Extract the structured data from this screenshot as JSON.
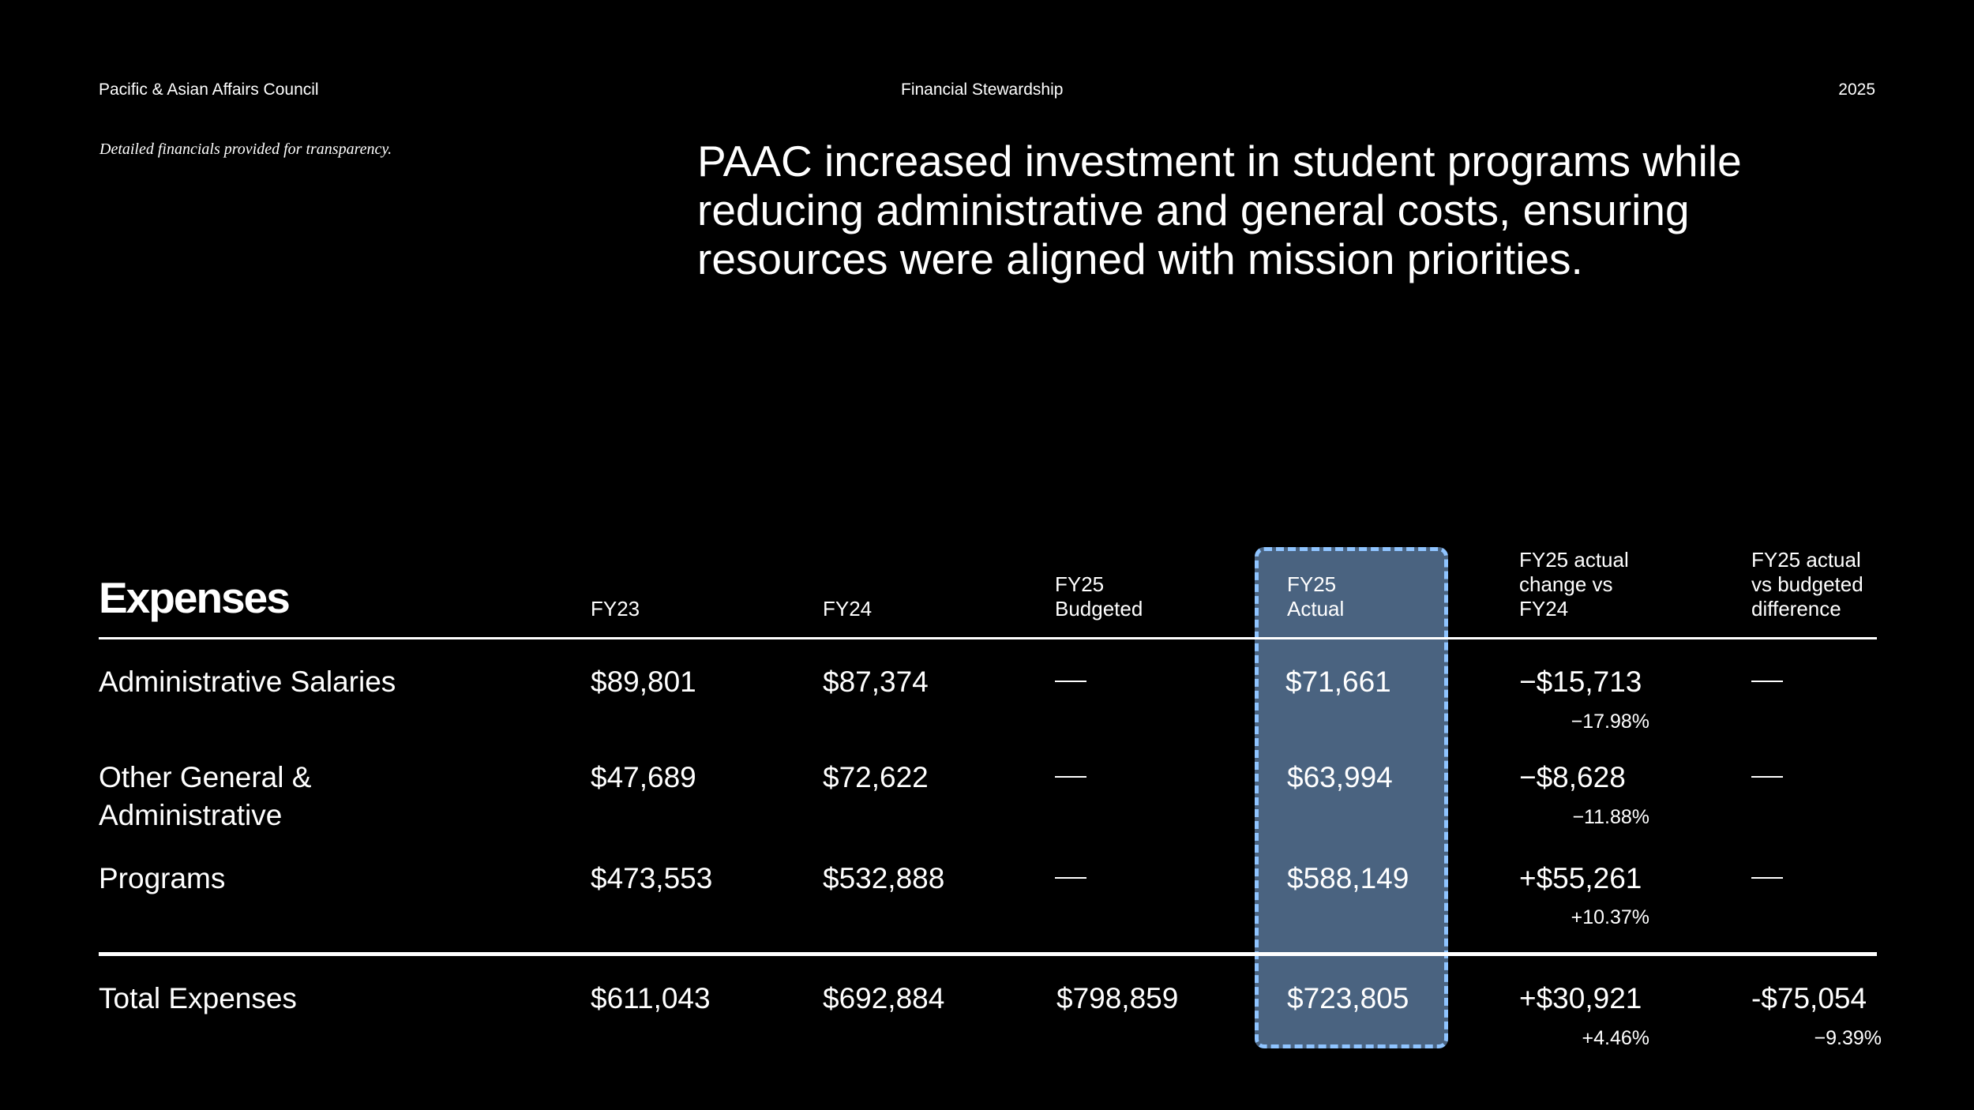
{
  "header": {
    "organization": "Pacific & Asian Affairs Council",
    "section": "Financial Stewardship",
    "year": "2025"
  },
  "note": "Detailed financials provided for transparency.",
  "headline": "PAAC increased investment in student programs while reducing administrative and general costs, ensuring resources were aligned with mission priorities.",
  "table": {
    "title": "Expenses",
    "highlighted_column": "FY25 Actual",
    "columns": [
      {
        "line1": "",
        "line2": "",
        "line3": "FY23"
      },
      {
        "line1": "",
        "line2": "",
        "line3": "FY24"
      },
      {
        "line1": "",
        "line2": "FY25",
        "line3": "Budgeted"
      },
      {
        "line1": "",
        "line2": "FY25",
        "line3": "Actual"
      },
      {
        "line1": "FY25 actual",
        "line2": "change vs",
        "line3": "FY24"
      },
      {
        "line1": "FY25 actual",
        "line2": "vs budgeted",
        "line3": "difference"
      }
    ],
    "rows": [
      {
        "label_line1": "Administrative Salaries",
        "label_line2": "",
        "fy23": "$89,801",
        "fy24": "$87,374",
        "fy25_budgeted": "—",
        "fy25_actual": "$71,661",
        "change": "−$15,713",
        "change_pct": "−17.98%",
        "vs_budget": "—",
        "vs_budget_pct": ""
      },
      {
        "label_line1": "Other General &",
        "label_line2": "Administrative",
        "fy23": "$47,689",
        "fy24": "$72,622",
        "fy25_budgeted": "—",
        "fy25_actual": "$63,994",
        "change": "−$8,628",
        "change_pct": "−11.88%",
        "vs_budget": "—",
        "vs_budget_pct": ""
      },
      {
        "label_line1": "Programs",
        "label_line2": "",
        "fy23": "$473,553",
        "fy24": "$532,888",
        "fy25_budgeted": "—",
        "fy25_actual": "$588,149",
        "change": "+$55,261",
        "change_pct": "+10.37%",
        "vs_budget": "—",
        "vs_budget_pct": ""
      }
    ],
    "total": {
      "label": "Total Expenses",
      "fy23": "$611,043",
      "fy24": "$692,884",
      "fy25_budgeted": "$798,859",
      "fy25_actual": "$723,805",
      "change": "+$30,921",
      "change_pct": "+4.46%",
      "vs_budget": "-$75,054",
      "vs_budget_pct": "−9.39%"
    }
  },
  "colors": {
    "background": "#000000",
    "text": "#ffffff",
    "highlight_fill": "#4a6380",
    "highlight_border": "#8fc4ff"
  }
}
